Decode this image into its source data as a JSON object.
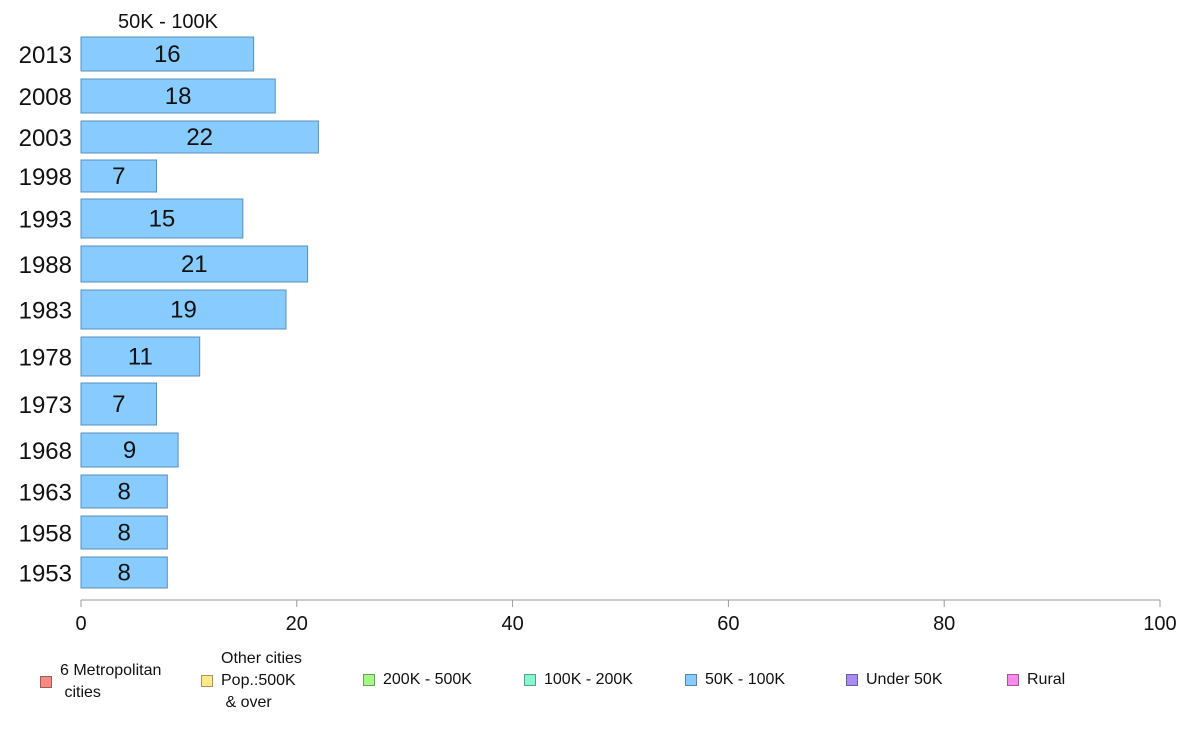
{
  "chart_data": {
    "type": "bar",
    "orientation": "horizontal",
    "title": "50K - 100K",
    "categories": [
      "2013",
      "2008",
      "2003",
      "1998",
      "1993",
      "1988",
      "1983",
      "1978",
      "1973",
      "1968",
      "1963",
      "1958",
      "1953"
    ],
    "values": [
      16,
      18,
      22,
      7,
      15,
      21,
      19,
      11,
      7,
      9,
      8,
      8,
      8
    ],
    "data_labels": [
      "16",
      "18",
      "22",
      "7",
      "15",
      "21",
      "19",
      "11",
      "7",
      "9",
      "8",
      "8",
      "8"
    ],
    "xlim": [
      0,
      100
    ],
    "x_ticks": [
      "0",
      "20",
      "40",
      "60",
      "80",
      "100"
    ],
    "xlabel": "",
    "ylabel": "",
    "bar_color": "#87cbff",
    "bar_border_color": "#5b8fb9",
    "grid": false,
    "legend_position": "bottom",
    "legend": [
      {
        "label": "6 Metropolitan\n cities",
        "color": "#f48c84"
      },
      {
        "label": "Other cities\nPop.:500K\n & over",
        "color": "#fde98a"
      },
      {
        "label": "200K - 500K",
        "color": "#a4f58a"
      },
      {
        "label": "100K - 200K",
        "color": "#87f5cf"
      },
      {
        "label": "50K - 100K",
        "color": "#87cbff"
      },
      {
        "label": "Under 50K",
        "color": "#a88cf5"
      },
      {
        "label": "Rural",
        "color": "#f58ae9"
      }
    ]
  }
}
